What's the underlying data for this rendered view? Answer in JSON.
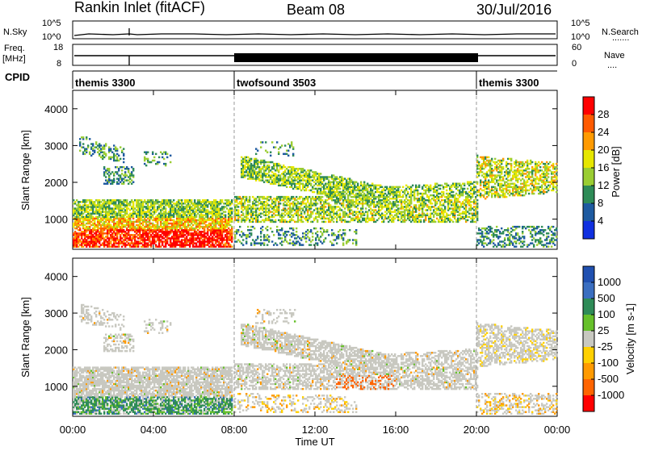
{
  "header": {
    "title_left": "Rankin Inlet (fitACF)",
    "title_center": "Beam 08",
    "title_right": "30/Jul/2016"
  },
  "noise_panel": {
    "left_label": "N.Sky",
    "right_label": "N.Search",
    "left_ticks": [
      "10^5",
      "10^0"
    ],
    "right_ticks": [
      "10^5",
      "10^0"
    ],
    "right_key": "......."
  },
  "freq_panel": {
    "left_label_1": "Freq.",
    "left_label_2": "[MHz]",
    "right_label": "Nave",
    "left_ticks": [
      "18",
      "8"
    ],
    "right_ticks": [
      "60",
      "0"
    ],
    "right_key": "...."
  },
  "cpid_panel": {
    "label": "CPID",
    "modes": [
      {
        "name": "themis 3300",
        "start_hour": 0,
        "end_hour": 8
      },
      {
        "name": "twofsound 3503",
        "start_hour": 8,
        "end_hour": 20
      },
      {
        "name": "themis 3300",
        "start_hour": 20,
        "end_hour": 24
      }
    ]
  },
  "x_axis": {
    "label": "Time UT",
    "ticks": [
      "00:00",
      "04:00",
      "08:00",
      "12:00",
      "16:00",
      "20:00",
      "00:00"
    ],
    "tick_hours": [
      0,
      4,
      8,
      12,
      16,
      20,
      24
    ]
  },
  "chart_data": [
    {
      "type": "heatmap",
      "panel": "power",
      "ylabel": "Slant Range [km]",
      "ylim": [
        180,
        4500
      ],
      "xlim": [
        0,
        24
      ],
      "y_ticks": [
        "1000",
        "2000",
        "3000",
        "4000"
      ],
      "y_tick_values": [
        1000,
        2000,
        3000,
        4000
      ],
      "colorbar_label": "Power [dB]",
      "colorbar_ticks": [
        "28",
        "24",
        "20",
        "16",
        "12",
        "8",
        "4"
      ],
      "colorbar_colors": [
        "#ff0000",
        "#ff5a00",
        "#ff9a00",
        "#e6e600",
        "#9acd32",
        "#2e8b57",
        "#1e5aa0",
        "#1030e0"
      ]
    },
    {
      "type": "heatmap",
      "panel": "velocity",
      "ylabel": "Slant Range [km]",
      "ylim": [
        180,
        4500
      ],
      "xlim": [
        0,
        24
      ],
      "y_ticks": [
        "1000",
        "2000",
        "3000",
        "4000"
      ],
      "y_tick_values": [
        1000,
        2000,
        3000,
        4000
      ],
      "colorbar_label": "Velocity [m s-1]",
      "colorbar_ticks": [
        "1000",
        "500",
        "100",
        "25",
        "-25",
        "-100",
        "-500",
        "-1000"
      ],
      "colorbar_colors": [
        "#2050b0",
        "#3a6ec0",
        "#2e8b57",
        "#66c02a",
        "#c8c8c0",
        "#ffd000",
        "#ff9a00",
        "#ff6400",
        "#ff0000"
      ]
    }
  ]
}
